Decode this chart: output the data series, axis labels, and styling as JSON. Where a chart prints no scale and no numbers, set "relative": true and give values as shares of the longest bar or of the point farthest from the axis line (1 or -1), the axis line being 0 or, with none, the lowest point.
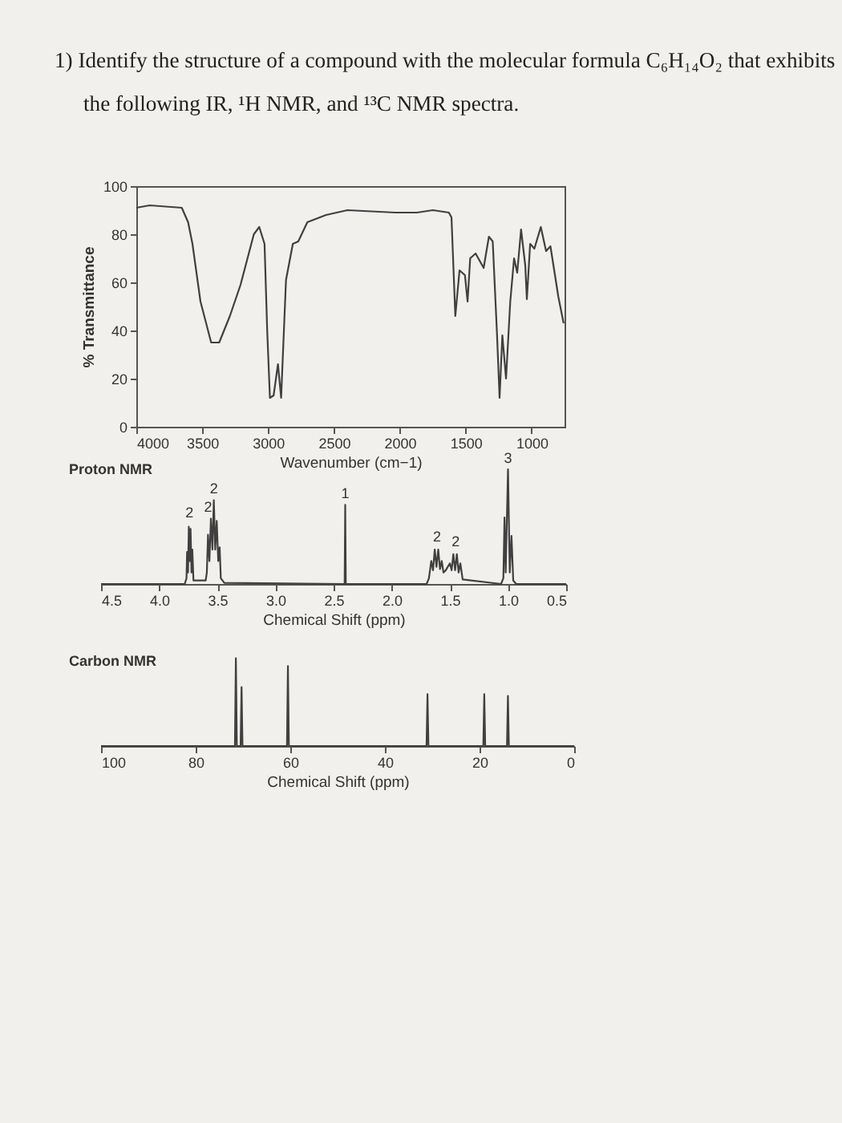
{
  "chart_data": [
    {
      "type": "line",
      "title": "1) Identify the structure of a compound with the molecular formula C₆H₁₄O₂ that exhibits the following IR, ¹H NMR, and ¹³C NMR spectra.",
      "xlabel": "Wavenumber (cm−1)",
      "ylabel": "% Transmittance",
      "xlim": [
        4000,
        750
      ],
      "xticks": [
        4000,
        3500,
        3000,
        2500,
        2000,
        1500,
        1000
      ],
      "ylim": [
        0,
        100
      ],
      "yticks": [
        0,
        20,
        40,
        60,
        80,
        100
      ],
      "x": [
        4000,
        3899,
        3655,
        3607,
        3574,
        3513,
        3432,
        3371,
        3290,
        3209,
        3108,
        3067,
        3027,
        3006,
        2986,
        2958,
        2925,
        2901,
        2864,
        2812,
        2771,
        2702,
        2560,
        2398,
        2033,
        1871,
        1749,
        1628,
        1608,
        1579,
        1547,
        1506,
        1486,
        1466,
        1425,
        1364,
        1324,
        1295,
        1263,
        1243,
        1222,
        1194,
        1162,
        1133,
        1109,
        1080,
        1048,
        1036,
        1011,
        979,
        930,
        890,
        857,
        797,
        757
      ],
      "series": [
        {
          "color": "#404040",
          "values": [
            91,
            92,
            91,
            85,
            76,
            52,
            35,
            35,
            46,
            59,
            80,
            83,
            76,
            39,
            12,
            13,
            26,
            12,
            61,
            76,
            77,
            85,
            88,
            90,
            89,
            89,
            90,
            89,
            87,
            46,
            65,
            63,
            52,
            70,
            72,
            66,
            79,
            77,
            39,
            12,
            38,
            20,
            52,
            70,
            64,
            82,
            67,
            53,
            76,
            74,
            83,
            73,
            75,
            54,
            43
          ]
        }
      ]
    },
    {
      "type": "line",
      "title": "Proton NMR",
      "xlabel": "Chemical Shift (ppm)",
      "relative": true,
      "tick_labels": "x",
      "xlim": [
        4.5,
        0.5
      ],
      "xticks": [
        4.5,
        {
          "value": 4,
          "label": "4.0"
        },
        3.5,
        {
          "value": 3,
          "label": "3.0"
        },
        2.5,
        {
          "value": 2,
          "label": "2.0"
        },
        1.5,
        {
          "value": 1,
          "label": "1.0"
        },
        0.5
      ],
      "x": [
        4.5,
        3.78,
        3.765,
        3.76,
        3.752,
        3.745,
        3.737,
        3.73,
        3.722,
        3.715,
        3.705,
        3.6,
        3.59,
        3.58,
        3.568,
        3.555,
        3.542,
        3.53,
        3.518,
        3.505,
        3.492,
        3.48,
        3.47,
        3.44,
        2.42,
        2.405,
        2.4,
        2.395,
        1.7,
        1.68,
        1.66,
        1.645,
        1.63,
        1.615,
        1.6,
        1.585,
        1.57,
        1.555,
        1.535,
        1.5,
        1.485,
        1.47,
        1.455,
        1.44,
        1.425,
        1.41,
        1.39,
        1.06,
        1.04,
        1.03,
        1.02,
        1.0,
        0.985,
        0.97,
        0.955,
        0.93,
        0.5
      ],
      "series": [
        {
          "color": "#404040",
          "values": [
            0,
            0,
            0.05,
            0.28,
            0.1,
            0.5,
            0.2,
            0.48,
            0.1,
            0.3,
            0.03,
            0.03,
            0.1,
            0.43,
            0.2,
            0.57,
            0.3,
            0.73,
            0.3,
            0.55,
            0.2,
            0.32,
            0.05,
            0.01,
            0,
            0,
            0.69,
            0,
            0,
            0.05,
            0.2,
            0.12,
            0.3,
            0.15,
            0.3,
            0.13,
            0.2,
            0.1,
            0.12,
            0.18,
            0.12,
            0.26,
            0.12,
            0.26,
            0.1,
            0.18,
            0.04,
            0,
            0.05,
            0.58,
            0.1,
            1,
            0.1,
            0.42,
            0.03,
            0,
            0
          ]
        }
      ],
      "annotations": [
        {
          "text": "2",
          "x": 3.74,
          "y": 0.55
        },
        {
          "text": "2",
          "x": 3.58,
          "y": 0.6
        },
        {
          "text": "2",
          "x": 3.53,
          "y": 0.76
        },
        {
          "text": "1",
          "x": 2.4,
          "y": 0.72
        },
        {
          "text": "2",
          "x": 1.61,
          "y": 0.34
        },
        {
          "text": "2",
          "x": 1.45,
          "y": 0.3
        },
        {
          "text": "3",
          "x": 1.0,
          "y": 1.03
        }
      ]
    },
    {
      "type": "line",
      "title": "Carbon NMR",
      "xlabel": "Chemical Shift (ppm)",
      "relative": true,
      "tick_labels": "x",
      "xlim": [
        100,
        0
      ],
      "xticks": [
        100,
        80,
        60,
        40,
        20,
        0
      ],
      "x": [
        100,
        71.7,
        71.5,
        71.3,
        70.5,
        70.3,
        70.1,
        60.7,
        60.5,
        60.3,
        31.2,
        31,
        30.8,
        19.2,
        19,
        18.8,
        14.2,
        14,
        13.8,
        0
      ],
      "series": [
        {
          "color": "#404040",
          "values": [
            0,
            0,
            1,
            0,
            0,
            0.67,
            0,
            0,
            0.91,
            0,
            0,
            0.59,
            0,
            0,
            0.59,
            0,
            0,
            0.57,
            0,
            0
          ]
        }
      ]
    }
  ]
}
